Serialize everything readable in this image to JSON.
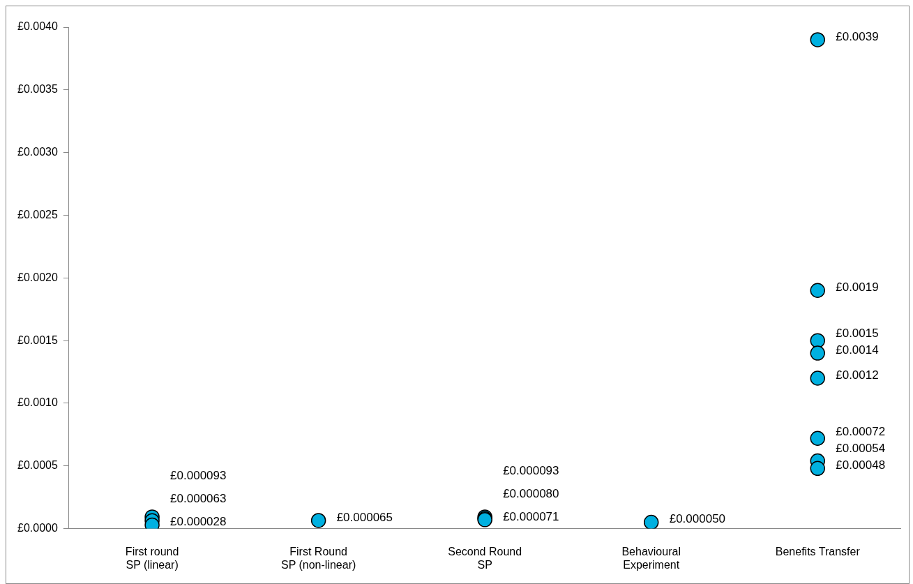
{
  "chart_data": {
    "type": "scatter",
    "categories": [
      "First round SP (linear)",
      "First Round SP (non-linear)",
      "Second Round SP",
      "Behavioural Experiment",
      "Benefits Transfer"
    ],
    "ylim": [
      0,
      0.004
    ],
    "yticks": [
      {
        "value": 0,
        "label": "£0.0000"
      },
      {
        "value": 0.0005,
        "label": "£0.0005"
      },
      {
        "value": 0.001,
        "label": "£0.0010"
      },
      {
        "value": 0.0015,
        "label": "£0.0015"
      },
      {
        "value": 0.002,
        "label": "£0.0020"
      },
      {
        "value": 0.0025,
        "label": "£0.0025"
      },
      {
        "value": 0.003,
        "label": "£0.0030"
      },
      {
        "value": 0.0035,
        "label": "£0.0035"
      },
      {
        "value": 0.004,
        "label": "£0.0040"
      }
    ],
    "grid": false,
    "legend": false,
    "marker": "circle",
    "series": [
      {
        "color": "#00b0e0",
        "x": [
          "First round SP (linear)",
          "First round SP (linear)",
          "First round SP (linear)",
          "First Round SP (non-linear)",
          "Second Round SP",
          "Second Round SP",
          "Second Round SP",
          "Behavioural Experiment",
          "Benefits Transfer",
          "Benefits Transfer",
          "Benefits Transfer",
          "Benefits Transfer",
          "Benefits Transfer",
          "Benefits Transfer",
          "Benefits Transfer",
          "Benefits Transfer"
        ],
        "values": [
          9.3e-05,
          6.3e-05,
          2.8e-05,
          6.5e-05,
          9.3e-05,
          8e-05,
          7.1e-05,
          5e-05,
          0.0039,
          0.0019,
          0.0015,
          0.0014,
          0.0012,
          0.00072,
          0.00054,
          0.00048
        ],
        "value_labels": [
          "£0.000093",
          "£0.000063",
          "£0.000028",
          "£0.000065",
          "£0.000093",
          "£0.000080",
          "£0.000071",
          "£0.000050",
          "£0.0039",
          "£0.0019",
          "£0.0015",
          "£0.0014",
          "£0.0012",
          "£0.00072",
          "£0.00054",
          "£0.00048"
        ]
      }
    ]
  }
}
